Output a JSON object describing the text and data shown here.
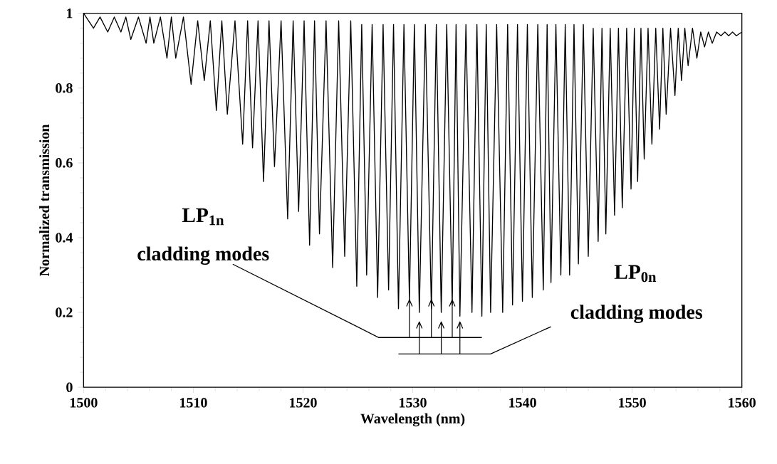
{
  "chart_data": {
    "type": "line",
    "xlabel": "Wavelength (nm)",
    "ylabel": "Normalized transmission",
    "color": "#000000",
    "x": [
      1500,
      1500.9,
      1501.5,
      1502.2,
      1502.8,
      1503.4,
      1503.85,
      1504.3,
      1505.0,
      1505.7,
      1506.05,
      1506.4,
      1507.0,
      1507.6,
      1508.0,
      1508.4,
      1509.1,
      1509.8,
      1510.4,
      1511.0,
      1511.55,
      1512.1,
      1512.6,
      1513.1,
      1513.8,
      1514.5,
      1514.95,
      1515.4,
      1515.9,
      1516.4,
      1516.9,
      1517.4,
      1518.0,
      1518.6,
      1519.1,
      1519.6,
      1520.1,
      1520.6,
      1521.05,
      1521.5,
      1522.1,
      1522.7,
      1523.25,
      1523.8,
      1524.35,
      1524.9,
      1525.35,
      1525.8,
      1526.3,
      1526.8,
      1527.3,
      1527.8,
      1528.25,
      1528.7,
      1529.2,
      1529.7,
      1530.15,
      1530.6,
      1531.15,
      1531.7,
      1532.15,
      1532.6,
      1533.1,
      1533.6,
      1533.95,
      1534.3,
      1534.85,
      1535.4,
      1535.85,
      1536.3,
      1536.7,
      1537.1,
      1537.65,
      1538.2,
      1538.65,
      1539.1,
      1539.55,
      1540.0,
      1540.45,
      1540.9,
      1541.4,
      1541.9,
      1542.25,
      1542.6,
      1543.05,
      1543.5,
      1543.9,
      1544.3,
      1544.7,
      1545.1,
      1545.55,
      1546.0,
      1546.45,
      1546.9,
      1547.25,
      1547.6,
      1548.0,
      1548.4,
      1548.75,
      1549.1,
      1549.5,
      1549.9,
      1550.2,
      1550.5,
      1550.8,
      1551.1,
      1551.45,
      1551.8,
      1552.15,
      1552.5,
      1552.8,
      1553.1,
      1553.5,
      1553.9,
      1554.2,
      1554.5,
      1554.8,
      1555.1,
      1555.5,
      1555.9,
      1556.25,
      1556.6,
      1556.95,
      1557.3,
      1557.7,
      1558.1,
      1558.45,
      1558.8,
      1559.15,
      1559.5,
      1560
    ],
    "values": [
      1.0,
      0.96,
      0.99,
      0.95,
      0.99,
      0.95,
      0.99,
      0.93,
      0.99,
      0.92,
      0.99,
      0.92,
      0.99,
      0.88,
      0.99,
      0.88,
      0.99,
      0.81,
      0.98,
      0.82,
      0.98,
      0.74,
      0.98,
      0.73,
      0.98,
      0.65,
      0.98,
      0.64,
      0.98,
      0.55,
      0.98,
      0.59,
      0.98,
      0.45,
      0.98,
      0.47,
      0.98,
      0.38,
      0.98,
      0.41,
      0.98,
      0.32,
      0.98,
      0.35,
      0.98,
      0.27,
      0.97,
      0.3,
      0.97,
      0.24,
      0.97,
      0.26,
      0.97,
      0.21,
      0.97,
      0.23,
      0.97,
      0.2,
      0.97,
      0.21,
      0.97,
      0.2,
      0.97,
      0.22,
      0.97,
      0.19,
      0.97,
      0.2,
      0.97,
      0.19,
      0.97,
      0.2,
      0.97,
      0.2,
      0.97,
      0.22,
      0.97,
      0.23,
      0.97,
      0.24,
      0.97,
      0.26,
      0.97,
      0.28,
      0.97,
      0.3,
      0.97,
      0.3,
      0.97,
      0.33,
      0.97,
      0.35,
      0.96,
      0.39,
      0.96,
      0.41,
      0.96,
      0.46,
      0.96,
      0.48,
      0.96,
      0.53,
      0.96,
      0.55,
      0.96,
      0.61,
      0.96,
      0.65,
      0.96,
      0.69,
      0.96,
      0.73,
      0.96,
      0.78,
      0.96,
      0.82,
      0.96,
      0.86,
      0.96,
      0.88,
      0.95,
      0.91,
      0.95,
      0.92,
      0.95,
      0.94,
      0.95,
      0.94,
      0.95,
      0.94,
      0.95
    ],
    "xlim": [
      1500,
      1560
    ],
    "ylim": [
      0,
      1
    ],
    "xticks": [
      1500,
      1510,
      1520,
      1530,
      1540,
      1550,
      1560
    ],
    "yticks": [
      0,
      0.2,
      0.4,
      0.6,
      0.8,
      1
    ],
    "annotations": [
      "LP$_{1n}$",
      "cladding modes",
      "LP$_{0n}$",
      "cladding modes"
    ]
  }
}
